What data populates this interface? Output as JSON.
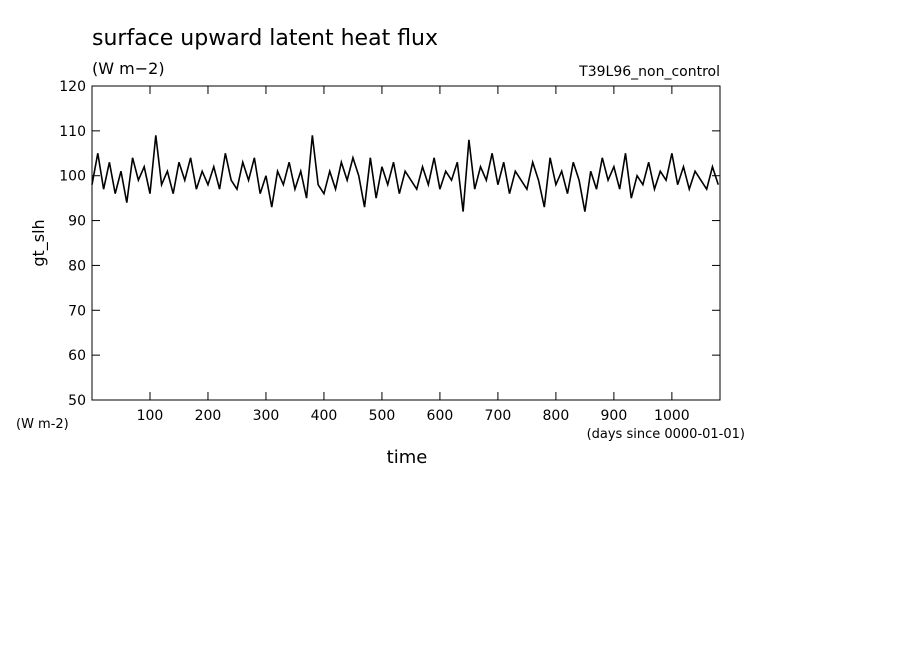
{
  "chart_data": {
    "type": "line",
    "title": "surface upward latent heat flux",
    "subtitle": "(W m−2)",
    "annotation": "T39L96_non_control",
    "y_label": "gt_slh",
    "y_unit": "(W m-2)",
    "x_label": "time",
    "x_unit": "(days since 0000-01-01)",
    "xlim": [
      0,
      1083
    ],
    "ylim": [
      50,
      120
    ],
    "xticks": [
      100,
      200,
      300,
      400,
      500,
      600,
      700,
      800,
      900,
      1000
    ],
    "yticks": [
      50,
      60,
      70,
      80,
      90,
      100,
      110,
      120
    ],
    "color": "#000000",
    "x": [
      0,
      10,
      20,
      30,
      40,
      50,
      60,
      70,
      80,
      90,
      100,
      110,
      120,
      130,
      140,
      150,
      160,
      170,
      180,
      190,
      200,
      210,
      220,
      230,
      240,
      250,
      260,
      270,
      280,
      290,
      300,
      310,
      320,
      330,
      340,
      350,
      360,
      370,
      380,
      390,
      400,
      410,
      420,
      430,
      440,
      450,
      460,
      470,
      480,
      490,
      500,
      510,
      520,
      530,
      540,
      550,
      560,
      570,
      580,
      590,
      600,
      610,
      620,
      630,
      640,
      650,
      660,
      670,
      680,
      690,
      700,
      710,
      720,
      730,
      740,
      750,
      760,
      770,
      780,
      790,
      800,
      810,
      820,
      830,
      840,
      850,
      860,
      870,
      880,
      890,
      900,
      910,
      920,
      930,
      940,
      950,
      960,
      970,
      980,
      990,
      1000,
      1010,
      1020,
      1030,
      1040,
      1050,
      1060,
      1070,
      1080
    ],
    "values": [
      98,
      105,
      97,
      103,
      96,
      101,
      94,
      104,
      99,
      102,
      96,
      109,
      98,
      101,
      96,
      103,
      99,
      104,
      97,
      101,
      98,
      102,
      97,
      105,
      99,
      97,
      103,
      99,
      104,
      96,
      100,
      93,
      101,
      98,
      103,
      97,
      101,
      95,
      109,
      98,
      96,
      101,
      97,
      103,
      99,
      104,
      100,
      93,
      104,
      95,
      102,
      98,
      103,
      96,
      101,
      99,
      97,
      102,
      98,
      104,
      97,
      101,
      99,
      103,
      92,
      108,
      97,
      102,
      99,
      105,
      98,
      103,
      96,
      101,
      99,
      97,
      103,
      99,
      93,
      104,
      98,
      101,
      96,
      103,
      99,
      92,
      101,
      97,
      104,
      99,
      102,
      97,
      105,
      95,
      100,
      98,
      103,
      97,
      101,
      99,
      105,
      98,
      102,
      97,
      101,
      99,
      97,
      102,
      98
    ]
  }
}
